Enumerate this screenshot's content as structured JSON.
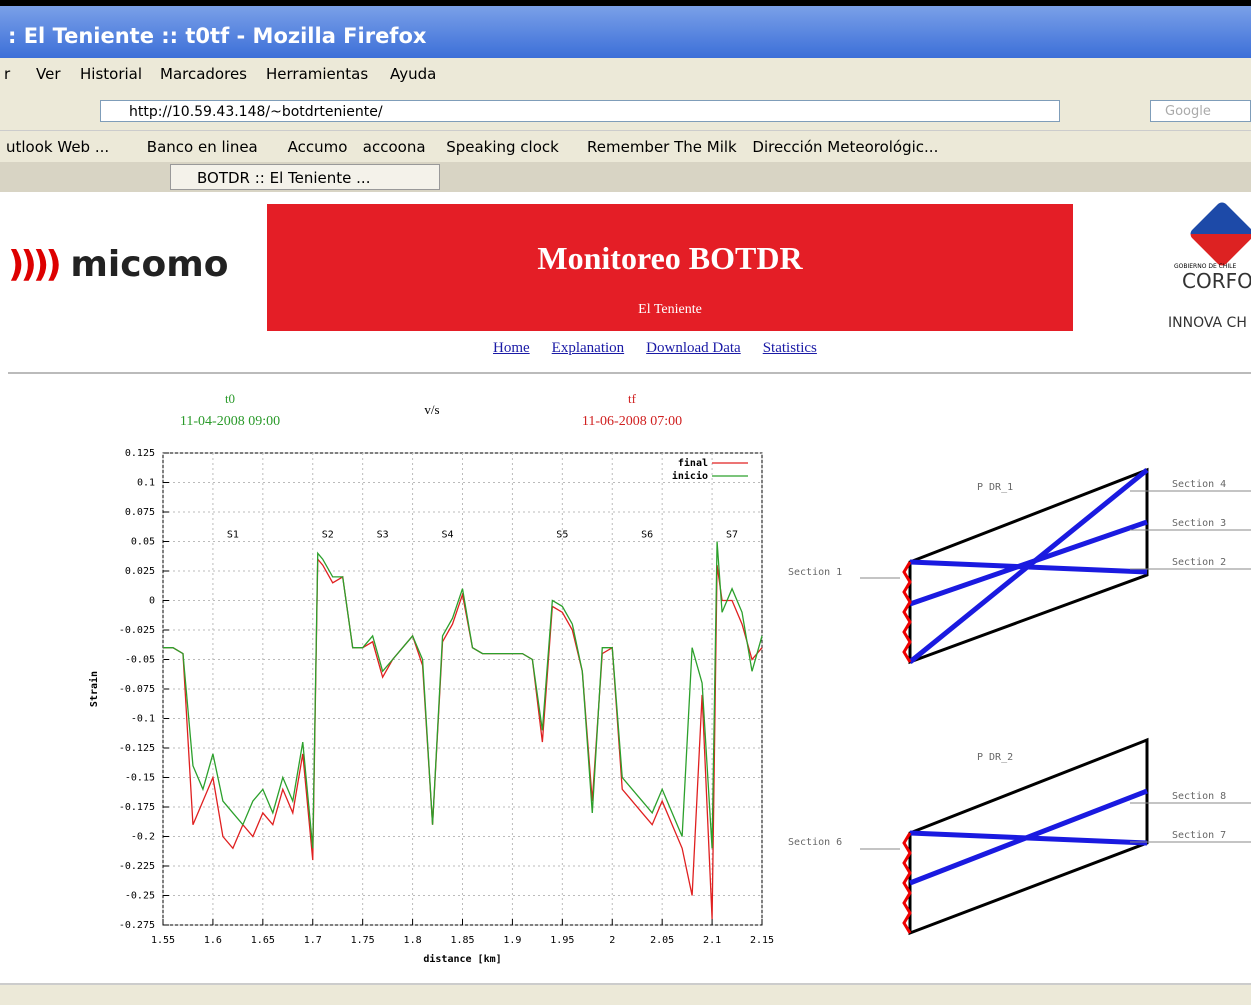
{
  "browser": {
    "window_title": ": El Teniente :: t0tf - Mozilla Firefox",
    "menu": [
      "r",
      "Ver",
      "Historial",
      "Marcadores",
      "Herramientas",
      "Ayuda"
    ],
    "url": "http://10.59.43.148/~botdrteniente/",
    "search": "Google",
    "bookmarks": [
      "utlook Web ...",
      "Banco en linea",
      "Accumo",
      "accoona",
      "Speaking clock",
      "Remember The Milk",
      "Dirección Meteorológic..."
    ],
    "tab": "BOTDR :: El Teniente ..."
  },
  "header": {
    "logo": "micomo",
    "title": "Monitoreo BOTDR",
    "subtitle": "El Teniente",
    "gov": "GOBIERNO DE CHILE",
    "corfo": "CORFO",
    "innova": "INNOVA CH"
  },
  "nav": [
    "Home",
    "Explanation",
    "Download Data",
    "Statistics"
  ],
  "compare": {
    "t0_label": "t0",
    "t0_date": "11-04-2008 09:00",
    "vs": "v/s",
    "tf_label": "tf",
    "tf_date": "11-06-2008 07:00"
  },
  "chart_data": {
    "type": "line",
    "y_label": "Strain",
    "x_label": "distance [km]",
    "legend": "top-right",
    "grid": true,
    "x": [
      1.55,
      1.56,
      1.57,
      1.58,
      1.59,
      1.6,
      1.61,
      1.62,
      1.63,
      1.64,
      1.65,
      1.66,
      1.67,
      1.68,
      1.69,
      1.7,
      1.705,
      1.71,
      1.72,
      1.73,
      1.74,
      1.75,
      1.76,
      1.77,
      1.78,
      1.79,
      1.8,
      1.81,
      1.82,
      1.83,
      1.84,
      1.85,
      1.86,
      1.87,
      1.88,
      1.89,
      1.9,
      1.91,
      1.92,
      1.93,
      1.94,
      1.95,
      1.96,
      1.97,
      1.98,
      1.99,
      2,
      2.01,
      2.02,
      2.03,
      2.04,
      2.05,
      2.06,
      2.07,
      2.08,
      2.09,
      2.1,
      2.105,
      2.11,
      2.12,
      2.13,
      2.14,
      2.15
    ],
    "series": [
      {
        "name": "final",
        "color": "#e02020",
        "values": [
          -0.04,
          -0.04,
          -0.045,
          -0.19,
          -0.17,
          -0.15,
          -0.2,
          -0.21,
          -0.19,
          -0.2,
          -0.18,
          -0.19,
          -0.16,
          -0.18,
          -0.13,
          -0.22,
          0.035,
          0.03,
          0.015,
          0.02,
          -0.04,
          -0.04,
          -0.035,
          -0.065,
          -0.05,
          -0.04,
          -0.03,
          -0.055,
          -0.19,
          -0.035,
          -0.02,
          0.005,
          -0.04,
          -0.045,
          -0.045,
          -0.045,
          -0.045,
          -0.045,
          -0.05,
          -0.12,
          -0.005,
          -0.01,
          -0.025,
          -0.06,
          -0.17,
          -0.045,
          -0.04,
          -0.16,
          -0.17,
          -0.18,
          -0.19,
          -0.17,
          -0.19,
          -0.21,
          -0.25,
          -0.08,
          -0.27,
          0.03,
          0,
          0,
          -0.02,
          -0.05,
          -0.04
        ]
      },
      {
        "name": "inicio",
        "color": "#2ca02c",
        "values": [
          -0.04,
          -0.04,
          -0.045,
          -0.14,
          -0.16,
          -0.13,
          -0.17,
          -0.18,
          -0.19,
          -0.17,
          -0.16,
          -0.18,
          -0.15,
          -0.17,
          -0.12,
          -0.21,
          0.04,
          0.035,
          0.02,
          0.02,
          -0.04,
          -0.04,
          -0.03,
          -0.06,
          -0.05,
          -0.04,
          -0.03,
          -0.05,
          -0.19,
          -0.03,
          -0.015,
          0.01,
          -0.04,
          -0.045,
          -0.045,
          -0.045,
          -0.045,
          -0.045,
          -0.05,
          -0.11,
          0,
          -0.005,
          -0.02,
          -0.06,
          -0.18,
          -0.04,
          -0.04,
          -0.15,
          -0.16,
          -0.17,
          -0.18,
          -0.16,
          -0.18,
          -0.2,
          -0.04,
          -0.07,
          -0.21,
          0.05,
          -0.01,
          0.01,
          -0.01,
          -0.06,
          -0.03
        ]
      }
    ],
    "xlim": [
      1.55,
      2.15
    ],
    "xticks": [
      1.55,
      1.6,
      1.65,
      1.7,
      1.75,
      1.8,
      1.85,
      1.9,
      1.95,
      2,
      2.05,
      2.1,
      2.15
    ],
    "ylim": [
      -0.275,
      0.125
    ],
    "yticks": [
      -0.275,
      -0.25,
      -0.225,
      -0.2,
      -0.175,
      -0.15,
      -0.125,
      -0.1,
      -0.075,
      -0.05,
      -0.025,
      0,
      0.025,
      0.05,
      0.075,
      0.1,
      0.125
    ],
    "annotations": [
      {
        "text": "S1",
        "x": 1.62,
        "y": 0.056
      },
      {
        "text": "S2",
        "x": 1.715,
        "y": 0.056
      },
      {
        "text": "S3",
        "x": 1.77,
        "y": 0.056
      },
      {
        "text": "S4",
        "x": 1.835,
        "y": 0.056
      },
      {
        "text": "S5",
        "x": 1.95,
        "y": 0.056
      },
      {
        "text": "S6",
        "x": 2.035,
        "y": 0.056
      },
      {
        "text": "S7",
        "x": 2.12,
        "y": 0.056
      }
    ]
  },
  "diagrams": [
    {
      "title": "P DR_1",
      "left": "Section 1",
      "right": [
        "Section 4",
        "Section 3",
        "Section 2"
      ]
    },
    {
      "title": "P DR_2",
      "left": "Section 6",
      "right": [
        "Section 8",
        "Section 7"
      ]
    }
  ]
}
